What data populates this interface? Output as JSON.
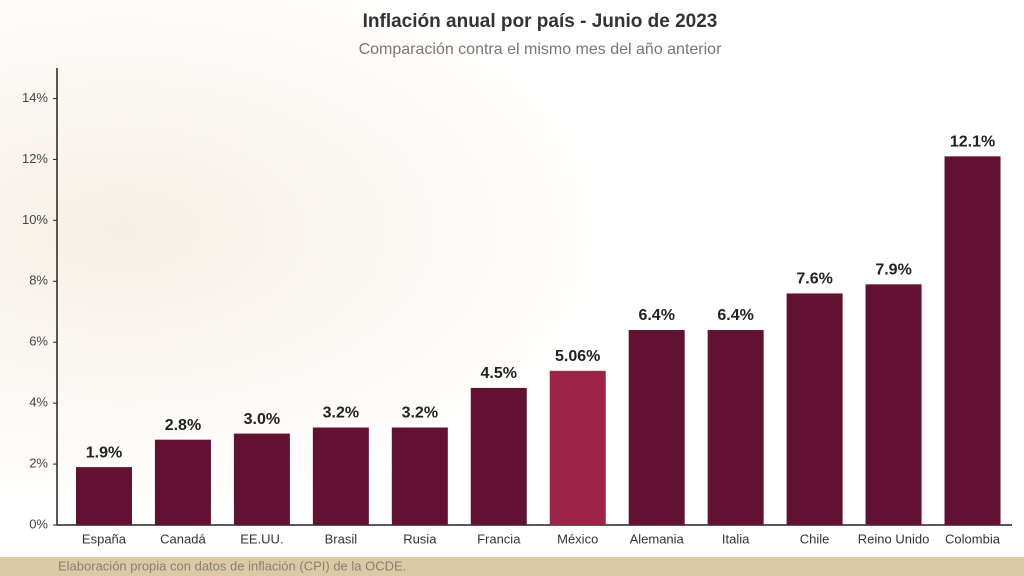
{
  "chart_data": {
    "type": "bar",
    "title": "Inflación anual por país - Junio de 2023",
    "subtitle": "Comparación contra el mismo mes del año anterior",
    "categories": [
      "España",
      "Canadá",
      "EE.UU.",
      "Brasil",
      "Rusia",
      "Francia",
      "México",
      "Alemania",
      "Italia",
      "Chile",
      "Reino Unido",
      "Colombia"
    ],
    "values": [
      1.9,
      2.8,
      3.0,
      3.2,
      3.2,
      4.5,
      5.06,
      6.4,
      6.4,
      7.6,
      7.9,
      12.1
    ],
    "value_labels": [
      "1.9%",
      "2.8%",
      "3.0%",
      "3.2%",
      "3.2%",
      "4.5%",
      "5.06%",
      "6.4%",
      "6.4%",
      "7.6%",
      "7.9%",
      "12.1%"
    ],
    "colors": [
      "#621132",
      "#621132",
      "#621132",
      "#621132",
      "#621132",
      "#621132",
      "#9d2449",
      "#621132",
      "#621132",
      "#621132",
      "#621132",
      "#621132"
    ],
    "ylim": [
      0,
      15
    ],
    "yticks": [
      {
        "value": 0,
        "label": "0%"
      },
      {
        "value": 2,
        "label": "2%"
      },
      {
        "value": 4,
        "label": "4%"
      },
      {
        "value": 6,
        "label": "6%"
      },
      {
        "value": 8,
        "label": "8%"
      },
      {
        "value": 10,
        "label": "10%"
      },
      {
        "value": 12,
        "label": "12%"
      },
      {
        "value": 14,
        "label": "14%"
      }
    ],
    "grid": false,
    "source": "Elaboración propia con datos de inflación (CPI) de la OCDE."
  }
}
